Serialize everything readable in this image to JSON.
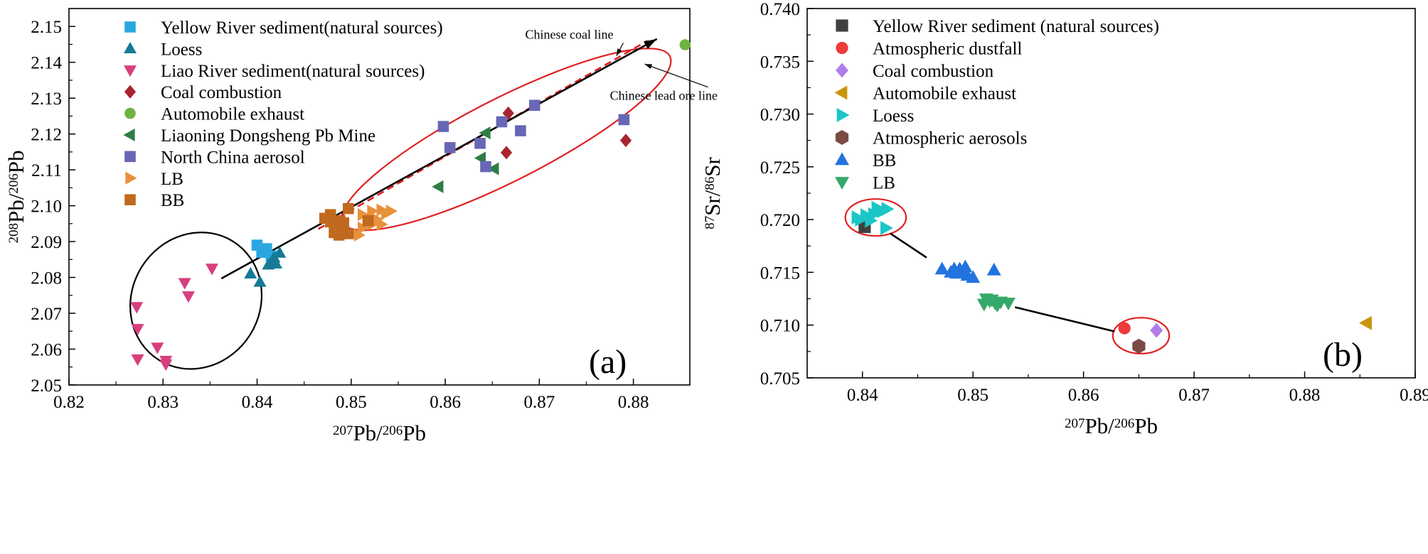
{
  "chart_data": [
    {
      "type": "scatter",
      "panel_label": "(a)",
      "xlabel": "Pb/Pb",
      "xlabel_parts": {
        "sup1": "207",
        "base1": "Pb/",
        "sup2": "206",
        "base2": "Pb"
      },
      "ylabel_parts": {
        "sup1": "208",
        "base1": "Pb/",
        "sup2": "206",
        "base2": "Pb"
      },
      "xlim": [
        0.82,
        0.886
      ],
      "ylim": [
        2.05,
        2.155
      ],
      "x_ticks": [
        0.82,
        0.83,
        0.84,
        0.85,
        0.86,
        0.87,
        0.88
      ],
      "x_tick_labels": [
        "0.82",
        "0.83",
        "0.84",
        "0.85",
        "0.86",
        "0.87",
        "0.88"
      ],
      "y_ticks": [
        2.05,
        2.06,
        2.07,
        2.08,
        2.09,
        2.1,
        2.11,
        2.12,
        2.13,
        2.14,
        2.15
      ],
      "y_tick_labels": [
        "2.05",
        "2.06",
        "2.07",
        "2.08",
        "2.09",
        "2.10",
        "2.11",
        "2.12",
        "2.13",
        "2.14",
        "2.15"
      ],
      "legend_position": "top-left",
      "series": [
        {
          "name": "Yellow River sediment(natural sources)",
          "marker": "square",
          "color": "#29a7e0",
          "points": [
            [
              0.84,
              2.089
            ],
            [
              0.8405,
              2.087
            ],
            [
              0.841,
              2.088
            ],
            [
              0.8415,
              2.086
            ]
          ]
        },
        {
          "name": "Loess",
          "marker": "triangle-up",
          "color": "#167a96",
          "points": [
            [
              0.8393,
              2.081
            ],
            [
              0.8403,
              2.0787
            ],
            [
              0.8412,
              2.0835
            ],
            [
              0.8418,
              2.0855
            ],
            [
              0.842,
              2.0838
            ],
            [
              0.8424,
              2.0868
            ],
            [
              0.8415,
              2.0843
            ]
          ]
        },
        {
          "name": "Liao River  sediment(natural sources)",
          "marker": "triangle-down",
          "color": "#d83f7e",
          "points": [
            [
              0.8352,
              2.0825
            ],
            [
              0.8323,
              2.0785
            ],
            [
              0.8327,
              2.0748
            ],
            [
              0.8272,
              2.0718
            ],
            [
              0.8273,
              2.0657
            ],
            [
              0.8294,
              2.0605
            ],
            [
              0.8273,
              2.0572
            ],
            [
              0.8303,
              2.0568
            ],
            [
              0.8303,
              2.0558
            ]
          ]
        },
        {
          "name": "Coal combustion",
          "marker": "diamond",
          "color": "#a8242e",
          "points": [
            [
              0.8667,
              2.1258
            ],
            [
              0.8665,
              2.1148
            ],
            [
              0.8792,
              2.1182
            ]
          ]
        },
        {
          "name": "Automobile exhaust",
          "marker": "circle",
          "color": "#6db33f",
          "points": [
            [
              0.8855,
              2.1449
            ]
          ]
        },
        {
          "name": "Liaoning Dongsheng Pb Mine",
          "marker": "triangle-left",
          "color": "#2e7d44",
          "points": [
            [
              0.8643,
              2.1203
            ],
            [
              0.8638,
              2.1133
            ],
            [
              0.8652,
              2.1103
            ],
            [
              0.8593,
              2.1053
            ]
          ]
        },
        {
          "name": "North China aerosol",
          "marker": "square",
          "color": "#6767b5",
          "points": [
            [
              0.8598,
              2.1221
            ],
            [
              0.8605,
              2.1162
            ],
            [
              0.8637,
              2.1174
            ],
            [
              0.8643,
              2.1109
            ],
            [
              0.866,
              2.1234
            ],
            [
              0.868,
              2.1209
            ],
            [
              0.8695,
              2.128
            ],
            [
              0.879,
              2.124
            ]
          ]
        },
        {
          "name": "LB",
          "marker": "triangle-right",
          "color": "#e8913a",
          "points": [
            [
              0.8512,
              2.0975
            ],
            [
              0.8522,
              2.0985
            ],
            [
              0.8532,
              2.0988
            ],
            [
              0.8517,
              2.0958
            ],
            [
              0.8527,
              2.0962
            ],
            [
              0.8532,
              2.0948
            ],
            [
              0.8512,
              2.0938
            ],
            [
              0.8522,
              2.0948
            ],
            [
              0.8508,
              2.0918
            ],
            [
              0.8537,
              2.0978
            ],
            [
              0.8542,
              2.0985
            ]
          ]
        },
        {
          "name": "BB",
          "marker": "square",
          "color": "#c0691f",
          "points": [
            [
              0.8472,
              2.0965
            ],
            [
              0.8478,
              2.0955
            ],
            [
              0.8483,
              2.0945
            ],
            [
              0.8488,
              2.0958
            ],
            [
              0.8492,
              2.0952
            ],
            [
              0.8482,
              2.0925
            ],
            [
              0.8487,
              2.0918
            ],
            [
              0.8492,
              2.0928
            ],
            [
              0.8497,
              2.0922
            ],
            [
              0.8485,
              2.0932
            ],
            [
              0.8497,
              2.0992
            ],
            [
              0.8518,
              2.0958
            ],
            [
              0.8478,
              2.0975
            ]
          ]
        }
      ],
      "lines": [
        {
          "name": "Chinese coal line",
          "style": "dashed",
          "color": "#e02020",
          "from": [
            0.8465,
            2.0935
          ],
          "to": [
            0.8815,
            2.146
          ]
        },
        {
          "name": "Chinese lead ore line",
          "style": "solid-arrow",
          "color": "#000000",
          "from": [
            0.8362,
            2.0797
          ],
          "to": [
            0.8825,
            2.1465
          ]
        }
      ],
      "annotations": [
        {
          "text": "Chinese coal line",
          "x": 0.8685,
          "y": 2.1466,
          "arrow_to": [
            0.8782,
            2.1418
          ]
        },
        {
          "text": "Chinese lead ore line",
          "x": 0.8775,
          "y": 2.1295,
          "arrow_to": [
            0.8812,
            2.1395
          ]
        }
      ],
      "ellipses": [
        {
          "color": "#000000",
          "center": [
            0.8335,
            2.0735
          ],
          "semi_axes_data": [
            0.0068,
            0.0195
          ],
          "rotation_deg": 32
        },
        {
          "color": "#e02020",
          "center": [
            0.8665,
            2.1185
          ],
          "semi_axes_data": [
            0.0195,
            0.0115
          ],
          "rotation_deg": -27
        }
      ]
    },
    {
      "type": "scatter",
      "panel_label": "(b)",
      "xlabel_parts": {
        "sup1": "207",
        "base1": "Pb/",
        "sup2": "206",
        "base2": "Pb"
      },
      "ylabel_parts": {
        "sup1": "87",
        "base1": "Sr/",
        "sup2": "86",
        "base2": "Sr"
      },
      "xlim": [
        0.835,
        0.89
      ],
      "ylim": [
        0.705,
        0.74
      ],
      "x_ticks": [
        0.84,
        0.85,
        0.86,
        0.87,
        0.88,
        0.89
      ],
      "x_tick_labels": [
        "0.84",
        "0.85",
        "0.86",
        "0.87",
        "0.88",
        "0.89"
      ],
      "y_ticks": [
        0.705,
        0.71,
        0.715,
        0.72,
        0.725,
        0.73,
        0.735,
        0.74
      ],
      "y_tick_labels": [
        "0.705",
        "0.710",
        "0.715",
        "0.720",
        "0.725",
        "0.730",
        "0.735",
        "0.740"
      ],
      "legend_position": "top-left",
      "series": [
        {
          "name": "Yellow River sediment (natural sources)",
          "marker": "square",
          "color": "#404040",
          "points": [
            [
              0.8402,
              0.7193
            ]
          ]
        },
        {
          "name": "Atmospheric dustfall",
          "marker": "circle",
          "color": "#ee3a3a",
          "points": [
            [
              0.8637,
              0.7097
            ]
          ]
        },
        {
          "name": "Coal combustion",
          "marker": "diamond",
          "color": "#b07ee8",
          "points": [
            [
              0.8666,
              0.7095
            ]
          ]
        },
        {
          "name": "Automobile exhaust",
          "marker": "triangle-left",
          "color": "#c9950b",
          "points": [
            [
              0.8856,
              0.7102
            ]
          ]
        },
        {
          "name": "Loess",
          "marker": "triangle-right",
          "color": "#1bc6c6",
          "points": [
            [
              0.8395,
              0.7202
            ],
            [
              0.8403,
              0.7204
            ],
            [
              0.841,
              0.7205
            ],
            [
              0.8413,
              0.7211
            ],
            [
              0.8418,
              0.7208
            ],
            [
              0.8422,
              0.721
            ],
            [
              0.8407,
              0.7199
            ],
            [
              0.8421,
              0.7192
            ],
            [
              0.8398,
              0.72
            ]
          ]
        },
        {
          "name": "Atmospheric aerosols",
          "marker": "hexagon",
          "color": "#7a4a44",
          "points": [
            [
              0.865,
              0.708
            ]
          ]
        },
        {
          "name": "BB",
          "marker": "triangle-up",
          "color": "#2273e0",
          "points": [
            [
              0.8472,
              0.7153
            ],
            [
              0.848,
              0.715
            ],
            [
              0.8485,
              0.7149
            ],
            [
              0.8488,
              0.7153
            ],
            [
              0.8492,
              0.7151
            ],
            [
              0.8495,
              0.7147
            ],
            [
              0.85,
              0.7145
            ],
            [
              0.8493,
              0.7155
            ],
            [
              0.8519,
              0.7152
            ],
            [
              0.8483,
              0.7153
            ]
          ]
        },
        {
          "name": "LB",
          "marker": "triangle-down",
          "color": "#35a96a",
          "points": [
            [
              0.851,
              0.712
            ],
            [
              0.8515,
              0.7123
            ],
            [
              0.852,
              0.7121
            ],
            [
              0.8525,
              0.7122
            ],
            [
              0.8532,
              0.7121
            ],
            [
              0.8512,
              0.7125
            ],
            [
              0.8522,
              0.7119
            ],
            [
              0.8517,
              0.7124
            ]
          ]
        }
      ],
      "lines": [
        {
          "name": "mixing-line-upper",
          "style": "solid",
          "color": "#000000",
          "from": [
            0.8425,
            0.7187
          ],
          "to": [
            0.8458,
            0.7164
          ]
        },
        {
          "name": "mixing-line-lower",
          "style": "solid",
          "color": "#000000",
          "from": [
            0.8538,
            0.7117
          ],
          "to": [
            0.8628,
            0.7094
          ]
        }
      ],
      "ellipses": [
        {
          "color": "#e02020",
          "center": [
            0.8412,
            0.7202
          ],
          "semi_axes_data": [
            0.00275,
            0.00175
          ],
          "rotation_deg": 0
        },
        {
          "color": "#e02020",
          "center": [
            0.8652,
            0.709
          ],
          "semi_axes_data": [
            0.00255,
            0.0017
          ],
          "rotation_deg": 0
        }
      ]
    }
  ]
}
